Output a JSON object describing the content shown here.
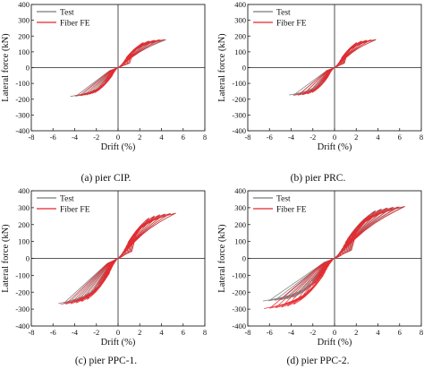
{
  "figure": {
    "charts": [
      {
        "id": "a",
        "caption": "(a) pier CIP."
      },
      {
        "id": "b",
        "caption": "(b) pier PRC."
      },
      {
        "id": "c",
        "caption": "(c) pier PPC-1."
      },
      {
        "id": "d",
        "caption": "(d) pier PPC-2."
      }
    ]
  },
  "chart_data": [
    {
      "type": "line",
      "caption": "(a) pier CIP.",
      "xlabel": "Drift (%)",
      "ylabel": "Lateral force (kN)",
      "xlim": [
        -8,
        8
      ],
      "ylim": [
        -400,
        400
      ],
      "xticks": [
        -8,
        -6,
        -4,
        -2,
        0,
        2,
        4,
        6,
        8
      ],
      "yticks": [
        -400,
        -300,
        -200,
        -100,
        0,
        100,
        200,
        300,
        400
      ],
      "legend": {
        "position": "top-left",
        "entries": [
          "Test",
          "Fiber FE"
        ]
      },
      "grid": false,
      "series": [
        {
          "name": "Test",
          "color": "#7a7a7a",
          "type": "hysteresis",
          "max_drift": [
            -4.4,
            4.4
          ],
          "peak_force": [
            -185,
            178
          ],
          "cycles": 8
        },
        {
          "name": "Fiber FE",
          "color": "#e8262b",
          "type": "hysteresis",
          "max_drift": [
            -4.0,
            4.3
          ],
          "peak_force": [
            -180,
            180
          ],
          "cycles": 8
        }
      ]
    },
    {
      "type": "line",
      "caption": "(b) pier PRC.",
      "xlabel": "Drift (%)",
      "ylabel": "Lateral force (kN)",
      "xlim": [
        -8,
        8
      ],
      "ylim": [
        -400,
        400
      ],
      "xticks": [
        -8,
        -6,
        -4,
        -2,
        0,
        2,
        4,
        6,
        8
      ],
      "yticks": [
        -400,
        -300,
        -200,
        -100,
        0,
        100,
        200,
        300,
        400
      ],
      "legend": {
        "position": "top-left",
        "entries": [
          "Test",
          "Fiber FE"
        ]
      },
      "grid": false,
      "series": [
        {
          "name": "Test",
          "color": "#7a7a7a",
          "type": "hysteresis",
          "max_drift": [
            -4.2,
            3.8
          ],
          "peak_force": [
            -175,
            178
          ],
          "cycles": 8
        },
        {
          "name": "Fiber FE",
          "color": "#e8262b",
          "type": "hysteresis",
          "max_drift": [
            -3.8,
            3.8
          ],
          "peak_force": [
            -178,
            180
          ],
          "cycles": 8
        }
      ]
    },
    {
      "type": "line",
      "caption": "(c) pier PPC-1.",
      "xlabel": "Drift (%)",
      "ylabel": "Lateral force (kN)",
      "xlim": [
        -8,
        8
      ],
      "ylim": [
        -400,
        400
      ],
      "xticks": [
        -8,
        -6,
        -4,
        -2,
        0,
        2,
        4,
        6,
        8
      ],
      "yticks": [
        -400,
        -300,
        -200,
        -100,
        0,
        100,
        200,
        300,
        400
      ],
      "legend": {
        "position": "top-left",
        "entries": [
          "Test",
          "Fiber FE"
        ]
      },
      "grid": false,
      "series": [
        {
          "name": "Test",
          "color": "#7a7a7a",
          "type": "hysteresis",
          "max_drift": [
            -5.5,
            5.3
          ],
          "peak_force": [
            -270,
            270
          ],
          "cycles": 10
        },
        {
          "name": "Fiber FE",
          "color": "#e8262b",
          "type": "hysteresis",
          "max_drift": [
            -5.3,
            5.3
          ],
          "peak_force": [
            -275,
            270
          ],
          "cycles": 10
        }
      ]
    },
    {
      "type": "line",
      "caption": "(d) pier PPC-2.",
      "xlabel": "Drift (%)",
      "ylabel": "Lateral force (kN)",
      "xlim": [
        -8,
        8
      ],
      "ylim": [
        -400,
        400
      ],
      "xticks": [
        -8,
        -6,
        -4,
        -2,
        0,
        2,
        4,
        6,
        8
      ],
      "yticks": [
        -400,
        -300,
        -200,
        -100,
        0,
        100,
        200,
        300,
        400
      ],
      "legend": {
        "position": "top-left",
        "entries": [
          "Test",
          "Fiber FE"
        ]
      },
      "grid": false,
      "series": [
        {
          "name": "Test",
          "color": "#7a7a7a",
          "type": "hysteresis",
          "max_drift": [
            -6.6,
            6.4
          ],
          "peak_force": [
            -255,
            310
          ],
          "cycles": 11
        },
        {
          "name": "Fiber FE",
          "color": "#e8262b",
          "type": "hysteresis",
          "max_drift": [
            -6.5,
            6.5
          ],
          "peak_force": [
            -300,
            310
          ],
          "cycles": 11
        }
      ]
    }
  ]
}
